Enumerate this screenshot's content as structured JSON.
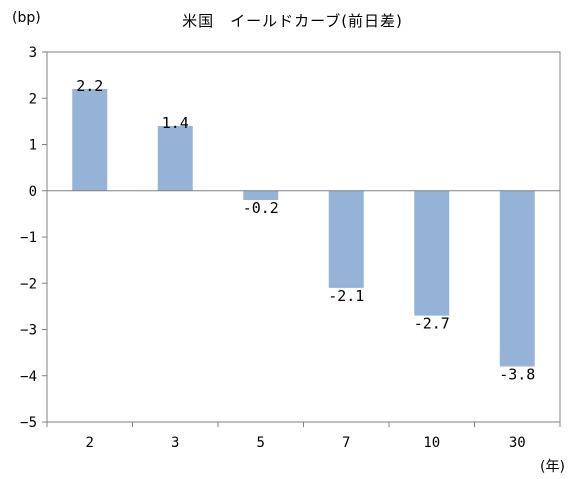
{
  "chart_data": {
    "type": "bar",
    "title": "米国　イールドカーブ(前日差)",
    "ylabel": "(bp)",
    "xlabel": "(年)",
    "categories": [
      "2",
      "3",
      "5",
      "7",
      "10",
      "30"
    ],
    "values": [
      2.2,
      1.4,
      -0.2,
      -2.1,
      -2.7,
      -3.8
    ],
    "data_labels": [
      "2.2",
      "1.4",
      "-0.2",
      "-2.1",
      "-2.7",
      "-3.8"
    ],
    "ylim": [
      -5,
      3
    ],
    "yticks": [
      "3",
      "2",
      "1",
      "0",
      "-1",
      "-2",
      "-3",
      "-4",
      "-5"
    ],
    "grid": false,
    "legend": "none",
    "bar_color": "#95b3d7"
  }
}
